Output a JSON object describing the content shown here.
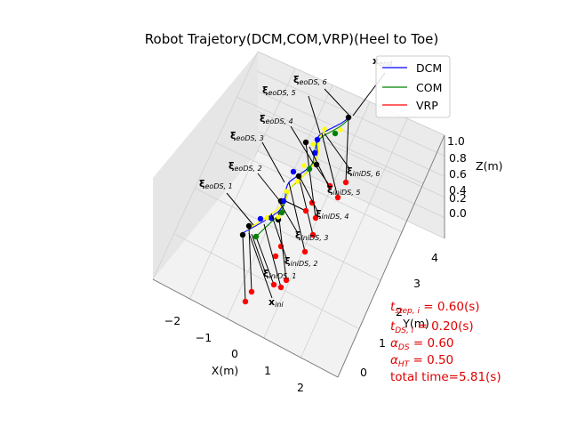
{
  "chart_data": {
    "type": "scatter",
    "title": "Robot Trajetory(DCM,COM,VRP)(Heel to Toe)",
    "xlabel": "X(m)",
    "ylabel": "Y(m)",
    "zlabel": "Z(m)",
    "x_ticks": [
      "−2",
      "−1",
      "0",
      "1",
      "2"
    ],
    "y_ticks": [
      "0",
      "1",
      "2",
      "3",
      "4"
    ],
    "z_ticks": [
      "0.0",
      "0.2",
      "0.4",
      "0.6",
      "0.8",
      "1.0"
    ],
    "legend": {
      "placement": "top-right",
      "entries": [
        {
          "label": "DCM",
          "color": "#0000ff"
        },
        {
          "label": "COM",
          "color": "#008000"
        },
        {
          "label": "VRP",
          "color": "#ff0000"
        }
      ]
    },
    "annotations": [
      {
        "sym": "ξ",
        "sub": "eoDS, 6"
      },
      {
        "sym": "ξ",
        "sub": "eoDS, 5"
      },
      {
        "sym": "ξ",
        "sub": "eoDS, 4"
      },
      {
        "sym": "ξ",
        "sub": "eoDS, 3"
      },
      {
        "sym": "ξ",
        "sub": "eoDS, 2"
      },
      {
        "sym": "ξ",
        "sub": "eoDS, 1"
      },
      {
        "sym": "ξ",
        "sub": "iniDS, 6"
      },
      {
        "sym": "ξ",
        "sub": "iniDS, 5"
      },
      {
        "sym": "ξ",
        "sub": "iniDS, 4"
      },
      {
        "sym": "ξ",
        "sub": "iniDS, 3"
      },
      {
        "sym": "ξ",
        "sub": "iniDS, 2"
      },
      {
        "sym": "ξ",
        "sub": "iniDS, 1"
      },
      {
        "sym": "x",
        "sub": "ini"
      },
      {
        "sym": "x",
        "sub": "end"
      }
    ],
    "parameters": [
      {
        "sym": "t",
        "sub": "step, i",
        "text": " = 0.60(s)"
      },
      {
        "sym": "t",
        "sub": "DS, i",
        "text": " = 0.20(s)"
      },
      {
        "sym": "α",
        "sub": "DS",
        "text": " = 0.60"
      },
      {
        "sym": "α",
        "sub": "HT",
        "text": " = 0.50"
      },
      {
        "sym": "",
        "sub": "",
        "text": "total time=5.81(s)"
      }
    ],
    "grid": true
  }
}
